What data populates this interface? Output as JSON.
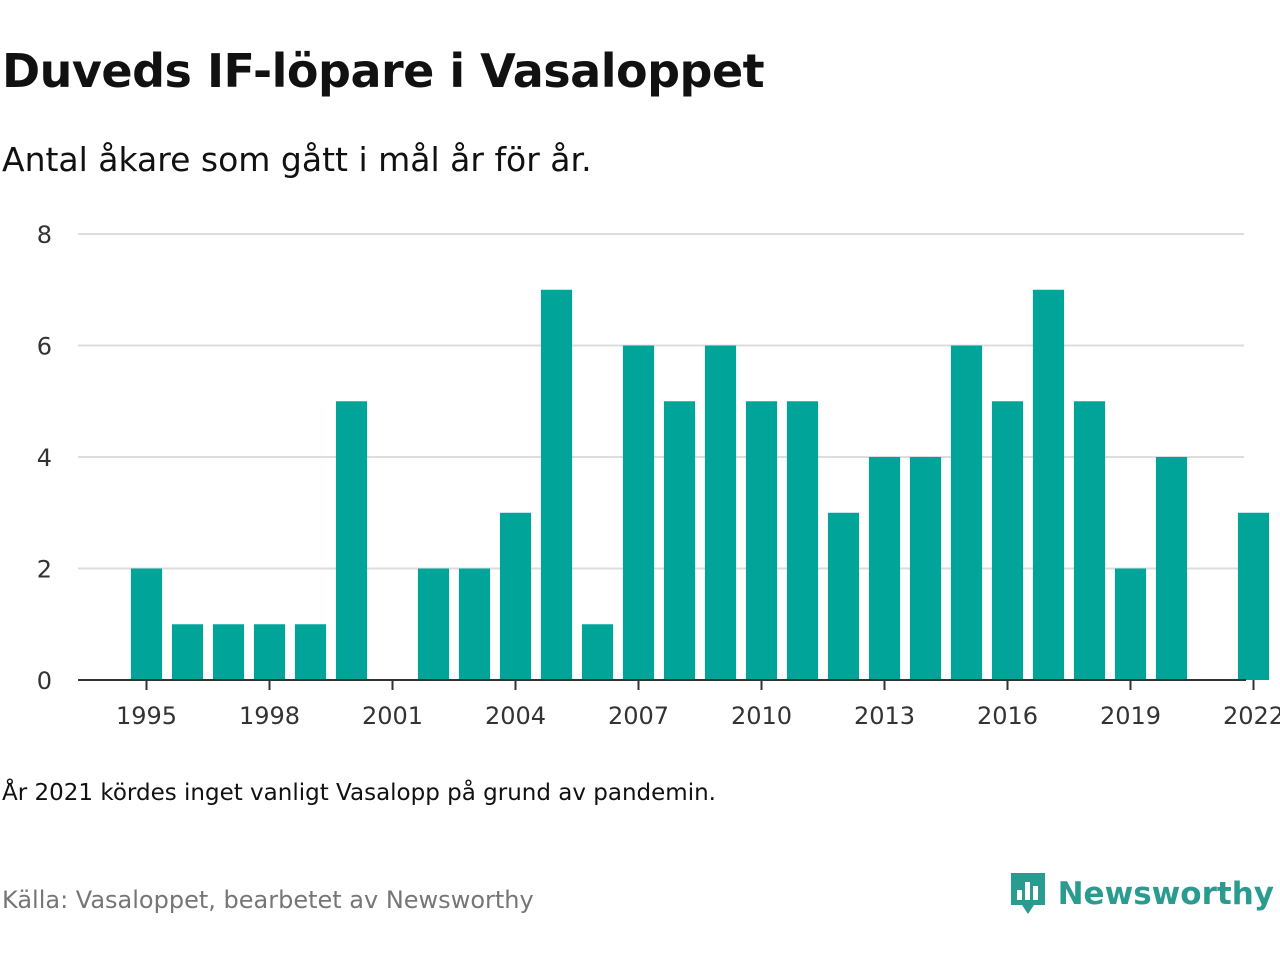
{
  "title": "Duveds IF-löpare i Vasaloppet",
  "subtitle": "Antal åkare som gått i mål år för år.",
  "note": "År 2021 kördes inget vanligt Vasalopp på grund av pandemin.",
  "source": "Källa: Vasaloppet, bearbetet av Newsworthy",
  "brand": {
    "name": "Newsworthy",
    "icon": "newsworthy-logo-icon",
    "color": "#2a9b8f"
  },
  "chart_data": {
    "type": "bar",
    "bar_color": "#00a499",
    "categories": [
      1995,
      1996,
      1997,
      1998,
      1999,
      2000,
      2001,
      2002,
      2003,
      2004,
      2005,
      2006,
      2007,
      2008,
      2009,
      2010,
      2011,
      2012,
      2013,
      2014,
      2015,
      2016,
      2017,
      2018,
      2019,
      2020,
      2021,
      2022
    ],
    "values": [
      2,
      1,
      1,
      1,
      1,
      5,
      0,
      2,
      2,
      3,
      7,
      1,
      6,
      5,
      6,
      5,
      5,
      3,
      4,
      4,
      6,
      5,
      7,
      5,
      2,
      4,
      0,
      3
    ],
    "x_tick_labels": [
      "1995",
      "1998",
      "2001",
      "2004",
      "2007",
      "2010",
      "2013",
      "2016",
      "2019",
      "2022"
    ],
    "y_tick_labels": [
      "0",
      "2",
      "4",
      "6",
      "8"
    ],
    "ylim": [
      0,
      8
    ],
    "grid": true,
    "xlabel": "",
    "ylabel": ""
  }
}
